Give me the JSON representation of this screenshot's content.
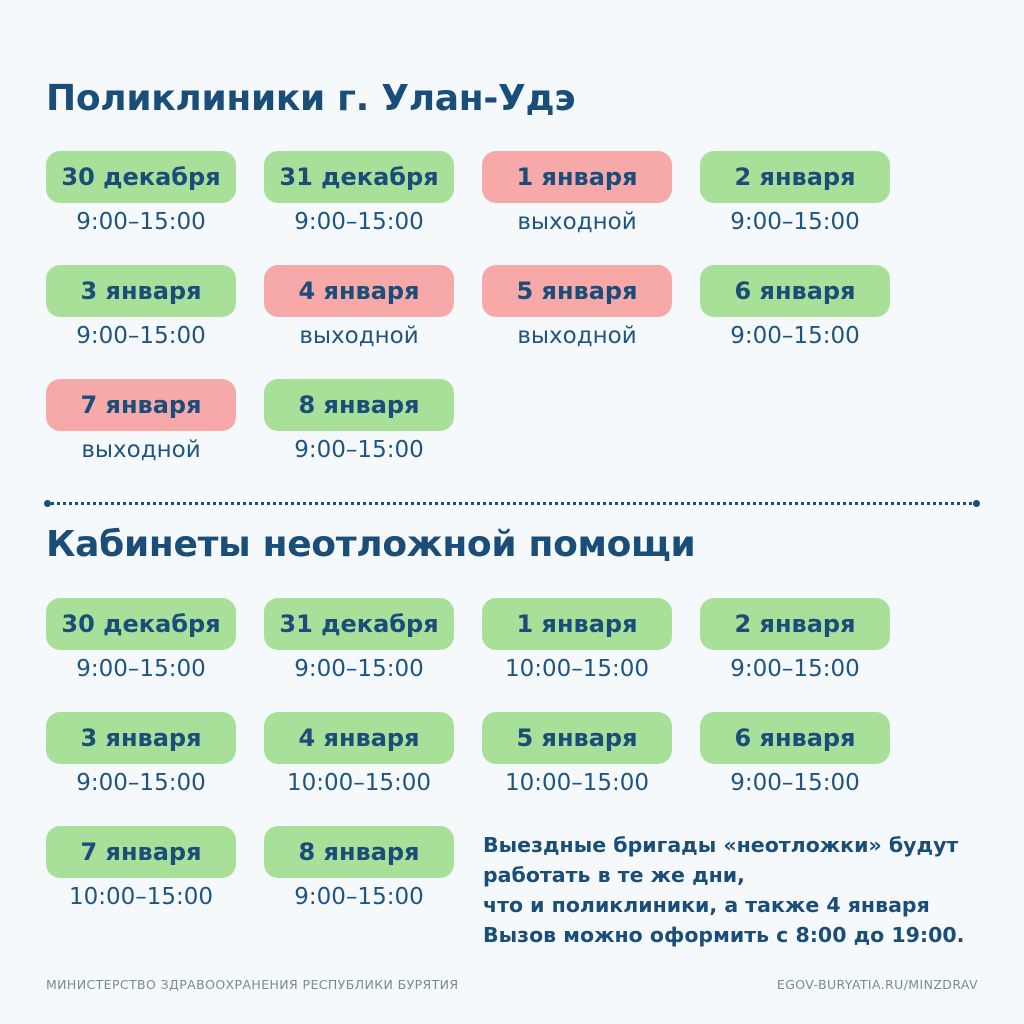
{
  "polyclinics": {
    "title": "Поликлиники г. Улан-Удэ",
    "days": [
      {
        "date": "30 декабря",
        "hours": "9:00–15:00",
        "status": "work"
      },
      {
        "date": "31 декабря",
        "hours": "9:00–15:00",
        "status": "work"
      },
      {
        "date": "1 января",
        "hours": "выходной",
        "status": "off"
      },
      {
        "date": "2 января",
        "hours": "9:00–15:00",
        "status": "work"
      },
      {
        "date": "3 января",
        "hours": "9:00–15:00",
        "status": "work"
      },
      {
        "date": "4 января",
        "hours": "выходной",
        "status": "off"
      },
      {
        "date": "5 января",
        "hours": "выходной",
        "status": "off"
      },
      {
        "date": "6 января",
        "hours": "9:00–15:00",
        "status": "work"
      },
      {
        "date": "7 января",
        "hours": "выходной",
        "status": "off"
      },
      {
        "date": "8 января",
        "hours": "9:00–15:00",
        "status": "work"
      }
    ]
  },
  "urgent": {
    "title": "Кабинеты неотложной помощи",
    "days": [
      {
        "date": "30 декабря",
        "hours": "9:00–15:00",
        "status": "work"
      },
      {
        "date": "31 декабря",
        "hours": "9:00–15:00",
        "status": "work"
      },
      {
        "date": "1 января",
        "hours": "10:00–15:00",
        "status": "work"
      },
      {
        "date": "2 января",
        "hours": "9:00–15:00",
        "status": "work"
      },
      {
        "date": "3 января",
        "hours": "9:00–15:00",
        "status": "work"
      },
      {
        "date": "4 января",
        "hours": "10:00–15:00",
        "status": "work"
      },
      {
        "date": "5 января",
        "hours": "10:00–15:00",
        "status": "work"
      },
      {
        "date": "6 января",
        "hours": "9:00–15:00",
        "status": "work"
      },
      {
        "date": "7 января",
        "hours": "10:00–15:00",
        "status": "work"
      },
      {
        "date": "8 января",
        "hours": "9:00–15:00",
        "status": "work"
      }
    ],
    "note_lines": [
      "Выездные бригады «неотложки» будут",
      "работать в те же дни,",
      "что и поликлиники, а также 4 января",
      "Вызов можно оформить с 8:00 до 19:00."
    ]
  },
  "colors": {
    "work": "#a8e09a",
    "off": "#f7a9a9",
    "text": "#1a4e79"
  },
  "footer": {
    "left": "МИНИСТЕРСТВО ЗДРАВООХРАНЕНИЯ РЕСПУБЛИКИ БУРЯТИЯ",
    "right": "EGOV-BURYATIA.RU/MINZDRAV"
  }
}
